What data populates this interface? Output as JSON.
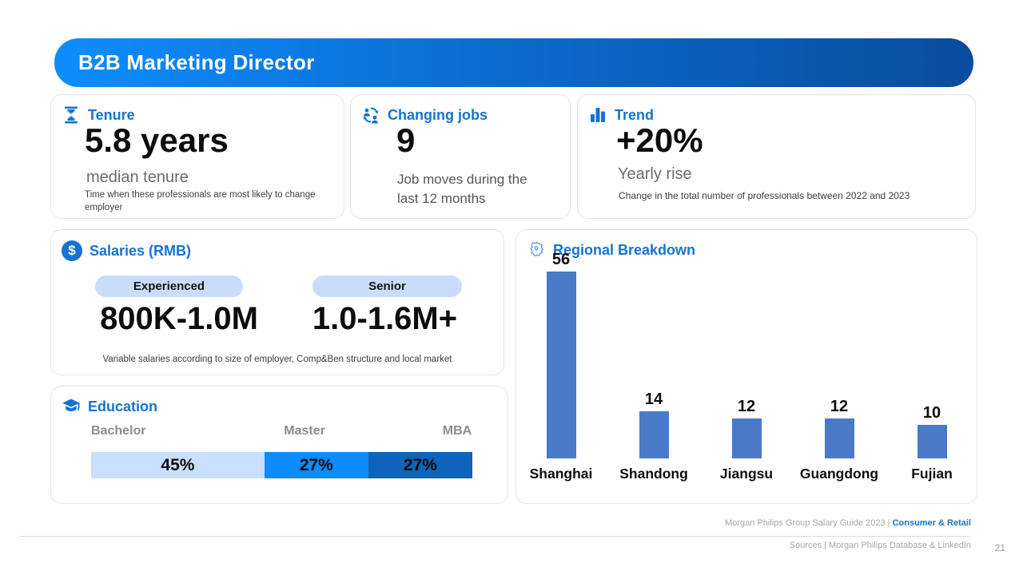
{
  "header": {
    "title": "B2B Marketing Director"
  },
  "cards": {
    "tenure": {
      "title": "Tenure",
      "icon": "hourglass-icon",
      "value": "5.8 years",
      "subtitle": "median tenure",
      "description": "Time when these professionals are most likely to  change employer"
    },
    "changing_jobs": {
      "title": "Changing jobs",
      "icon": "people-swap-icon",
      "value": "9",
      "description": "Job moves during the last 12 months"
    },
    "trend": {
      "title": "Trend",
      "icon": "bar-chart-icon",
      "value": "+20%",
      "subtitle": "Yearly rise",
      "description": "Change in the total number of professionals between 2022 and 2023"
    },
    "salaries": {
      "title": "Salaries (RMB)",
      "icon": "dollar-icon",
      "levels": [
        {
          "label": "Experienced",
          "range": "800K-1.0M"
        },
        {
          "label": "Senior",
          "range": "1.0-1.6M+"
        }
      ],
      "footnote": "Variable salaries according to size of employer, Comp&Ben structure and local market"
    },
    "education": {
      "title": "Education",
      "icon": "graduation-cap-icon"
    },
    "regional": {
      "title": "Regional Breakdown",
      "icon": "map-pin-icon"
    }
  },
  "chart_data": [
    {
      "id": "education",
      "type": "bar",
      "subtype": "stacked-horizontal",
      "title": "Education",
      "categories": [
        "Bachelor",
        "Master",
        "MBA"
      ],
      "values": [
        45,
        27,
        27
      ],
      "unit": "%",
      "colors": [
        "#c9dffc",
        "#0d8bff",
        "#0f63b8"
      ],
      "legend_position": "above-bar",
      "grid": false
    },
    {
      "id": "regional",
      "type": "bar",
      "title": "Regional Breakdown",
      "categories": [
        "Shanghai",
        "Shandong",
        "Jiangsu",
        "Guangdong",
        "Fujian"
      ],
      "values": [
        56,
        14,
        12,
        12,
        10
      ],
      "bar_color": "#4a7ac7",
      "ylim": [
        0,
        56
      ],
      "value_labels": true,
      "grid": false
    }
  ],
  "footer": {
    "guide_text": "Morgan Philips Group Salary Guide 2023 |",
    "guide_highlight": "Consumer & Retail",
    "sources": "Sources | Morgan Philips Database & LinkedIn",
    "page": "21"
  },
  "colors": {
    "accent_blue": "#1673d2",
    "header_gradient_left": "#0e8dff",
    "header_gradient_right": "#0a4c9e",
    "pill_background": "#c9ddfb",
    "regional_bar": "#4a7ac7",
    "education_segments": [
      "#c9dffc",
      "#0d8bff",
      "#0f63b8"
    ],
    "footer_gray": "#a6a6a6"
  }
}
